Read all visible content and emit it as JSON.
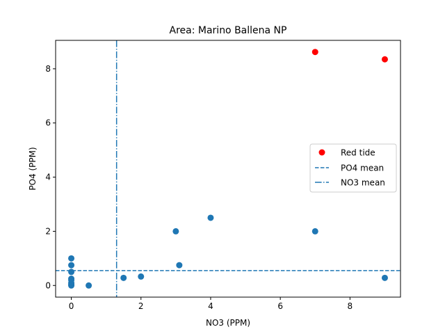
{
  "chart_data": {
    "type": "scatter",
    "title": "Area: Marino Ballena NP",
    "xlabel": "NO3 (PPM)",
    "ylabel": "PO4 (PPM)",
    "xlim": [
      -0.45,
      9.45
    ],
    "ylim": [
      -0.43,
      9.05
    ],
    "xticks": [
      0,
      2,
      4,
      6,
      8
    ],
    "yticks": [
      0,
      2,
      4,
      6,
      8
    ],
    "grid": false,
    "legend_position": "center-right",
    "colors": {
      "default": "#1f77b4",
      "red_tide": "#ff0000",
      "mean_lines": "#1f77b4"
    },
    "series": [
      {
        "role": "samples",
        "marker": "circle",
        "color": "#1f77b4",
        "points": [
          [
            0,
            0
          ],
          [
            0,
            0.02
          ],
          [
            0,
            0.05
          ],
          [
            0,
            0.1
          ],
          [
            0,
            0.2
          ],
          [
            0,
            0.25
          ],
          [
            0,
            0.5
          ],
          [
            0,
            0.75
          ],
          [
            0,
            1.0
          ],
          [
            0.5,
            0
          ],
          [
            1.5,
            0.28
          ],
          [
            2.0,
            0.33
          ],
          [
            3.0,
            2.0
          ],
          [
            3.1,
            0.75
          ],
          [
            4.0,
            2.5
          ],
          [
            7.0,
            2.0
          ],
          [
            9.0,
            0.28
          ]
        ]
      },
      {
        "role": "red-tide",
        "name": "Red tide",
        "marker": "circle",
        "color": "#ff0000",
        "points": [
          [
            7.0,
            8.62
          ],
          [
            9.0,
            8.35
          ]
        ]
      }
    ],
    "reference_lines": [
      {
        "name": "PO4 mean",
        "orientation": "horizontal",
        "value": 0.55,
        "style": "dashed",
        "color": "#1f77b4"
      },
      {
        "name": "NO3 mean",
        "orientation": "vertical",
        "value": 1.3,
        "style": "dashdot",
        "color": "#1f77b4"
      }
    ]
  }
}
